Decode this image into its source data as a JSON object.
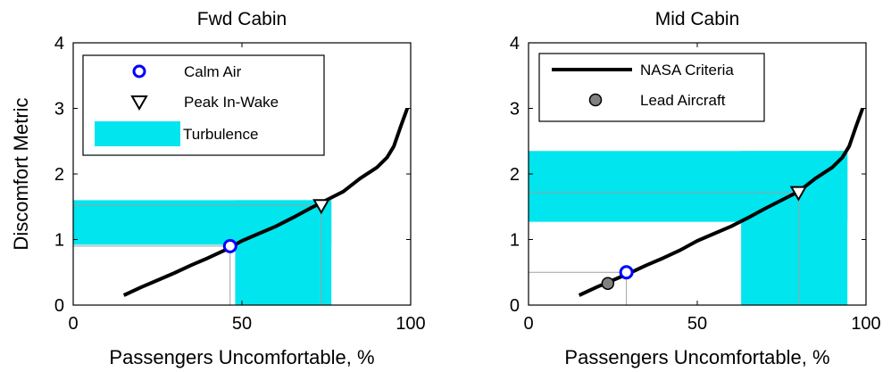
{
  "shared": {
    "ylabel": "Discomfort Metric",
    "xlabel": "Passengers Uncomfortable, %"
  },
  "colors": {
    "criteria": "#000000",
    "calm_air": "#0000ff",
    "peak_in_wake": "#000000",
    "turbulence": "#00e5ee",
    "lead_aircraft": "#808080",
    "guide_lines": "#a0a0a0"
  },
  "chart_data": [
    {
      "type": "line",
      "title": "Fwd Cabin",
      "xlabel": "Passengers Uncomfortable, %",
      "ylabel": "Discomfort Metric",
      "xlim": [
        0,
        100
      ],
      "ylim": [
        0,
        4
      ],
      "xticks": [
        "0",
        "50",
        "100"
      ],
      "yticks": [
        "0",
        "1",
        "2",
        "3",
        "4"
      ],
      "grid": false,
      "legend": {
        "placement": "top-left",
        "entries": [
          {
            "label": "Calm Air",
            "marker": "circle-open"
          },
          {
            "label": "Peak In-Wake",
            "marker": "triangle-down-open"
          },
          {
            "label": "Turbulence",
            "marker": "patch"
          }
        ]
      },
      "criteria_curve": {
        "x": [
          15,
          20,
          25,
          30,
          35,
          40,
          45,
          50,
          55,
          60,
          65,
          70,
          75,
          80,
          85,
          90,
          93,
          95,
          97,
          99
        ],
        "y": [
          0.15,
          0.27,
          0.38,
          0.49,
          0.61,
          0.72,
          0.84,
          0.98,
          1.09,
          1.2,
          1.33,
          1.47,
          1.6,
          1.73,
          1.93,
          2.1,
          2.25,
          2.42,
          2.72,
          3.0
        ]
      },
      "calm_air": {
        "x": 46.5,
        "y": 0.9
      },
      "peak_in_wake": {
        "x": 73.5,
        "y": 1.52
      },
      "turbulence": {
        "horizontal_band": {
          "x": [
            0,
            76.5
          ],
          "y": [
            0.92,
            1.6
          ]
        },
        "vertical_band": {
          "x": [
            48,
            76.5
          ],
          "y": [
            0,
            1.6
          ]
        }
      }
    },
    {
      "type": "line",
      "title": "Mid Cabin",
      "xlabel": "Passengers Uncomfortable, %",
      "ylabel": "",
      "xlim": [
        0,
        100
      ],
      "ylim": [
        0,
        4
      ],
      "xticks": [
        "0",
        "50",
        "100"
      ],
      "yticks": [
        "0",
        "1",
        "2",
        "3",
        "4"
      ],
      "grid": false,
      "legend": {
        "placement": "top-left",
        "entries": [
          {
            "label": "NASA Criteria",
            "marker": "line"
          },
          {
            "label": "Lead Aircraft",
            "marker": "circle-filled"
          }
        ]
      },
      "criteria_curve": {
        "x": [
          15,
          20,
          25,
          30,
          35,
          40,
          45,
          50,
          55,
          60,
          65,
          70,
          75,
          80,
          85,
          90,
          93,
          95,
          97,
          99
        ],
        "y": [
          0.15,
          0.27,
          0.38,
          0.49,
          0.61,
          0.72,
          0.84,
          0.98,
          1.09,
          1.2,
          1.33,
          1.47,
          1.6,
          1.73,
          1.93,
          2.1,
          2.25,
          2.42,
          2.72,
          3.0
        ]
      },
      "lead_aircraft": {
        "x": 23.5,
        "y": 0.33
      },
      "calm_air": {
        "x": 29,
        "y": 0.5
      },
      "peak_in_wake": {
        "x": 80,
        "y": 1.72
      },
      "turbulence": {
        "horizontal_band": {
          "x": [
            0,
            94.5
          ],
          "y": [
            1.27,
            2.35
          ]
        },
        "vertical_band": {
          "x": [
            63,
            94.5
          ],
          "y": [
            0,
            2.35
          ]
        }
      }
    }
  ]
}
